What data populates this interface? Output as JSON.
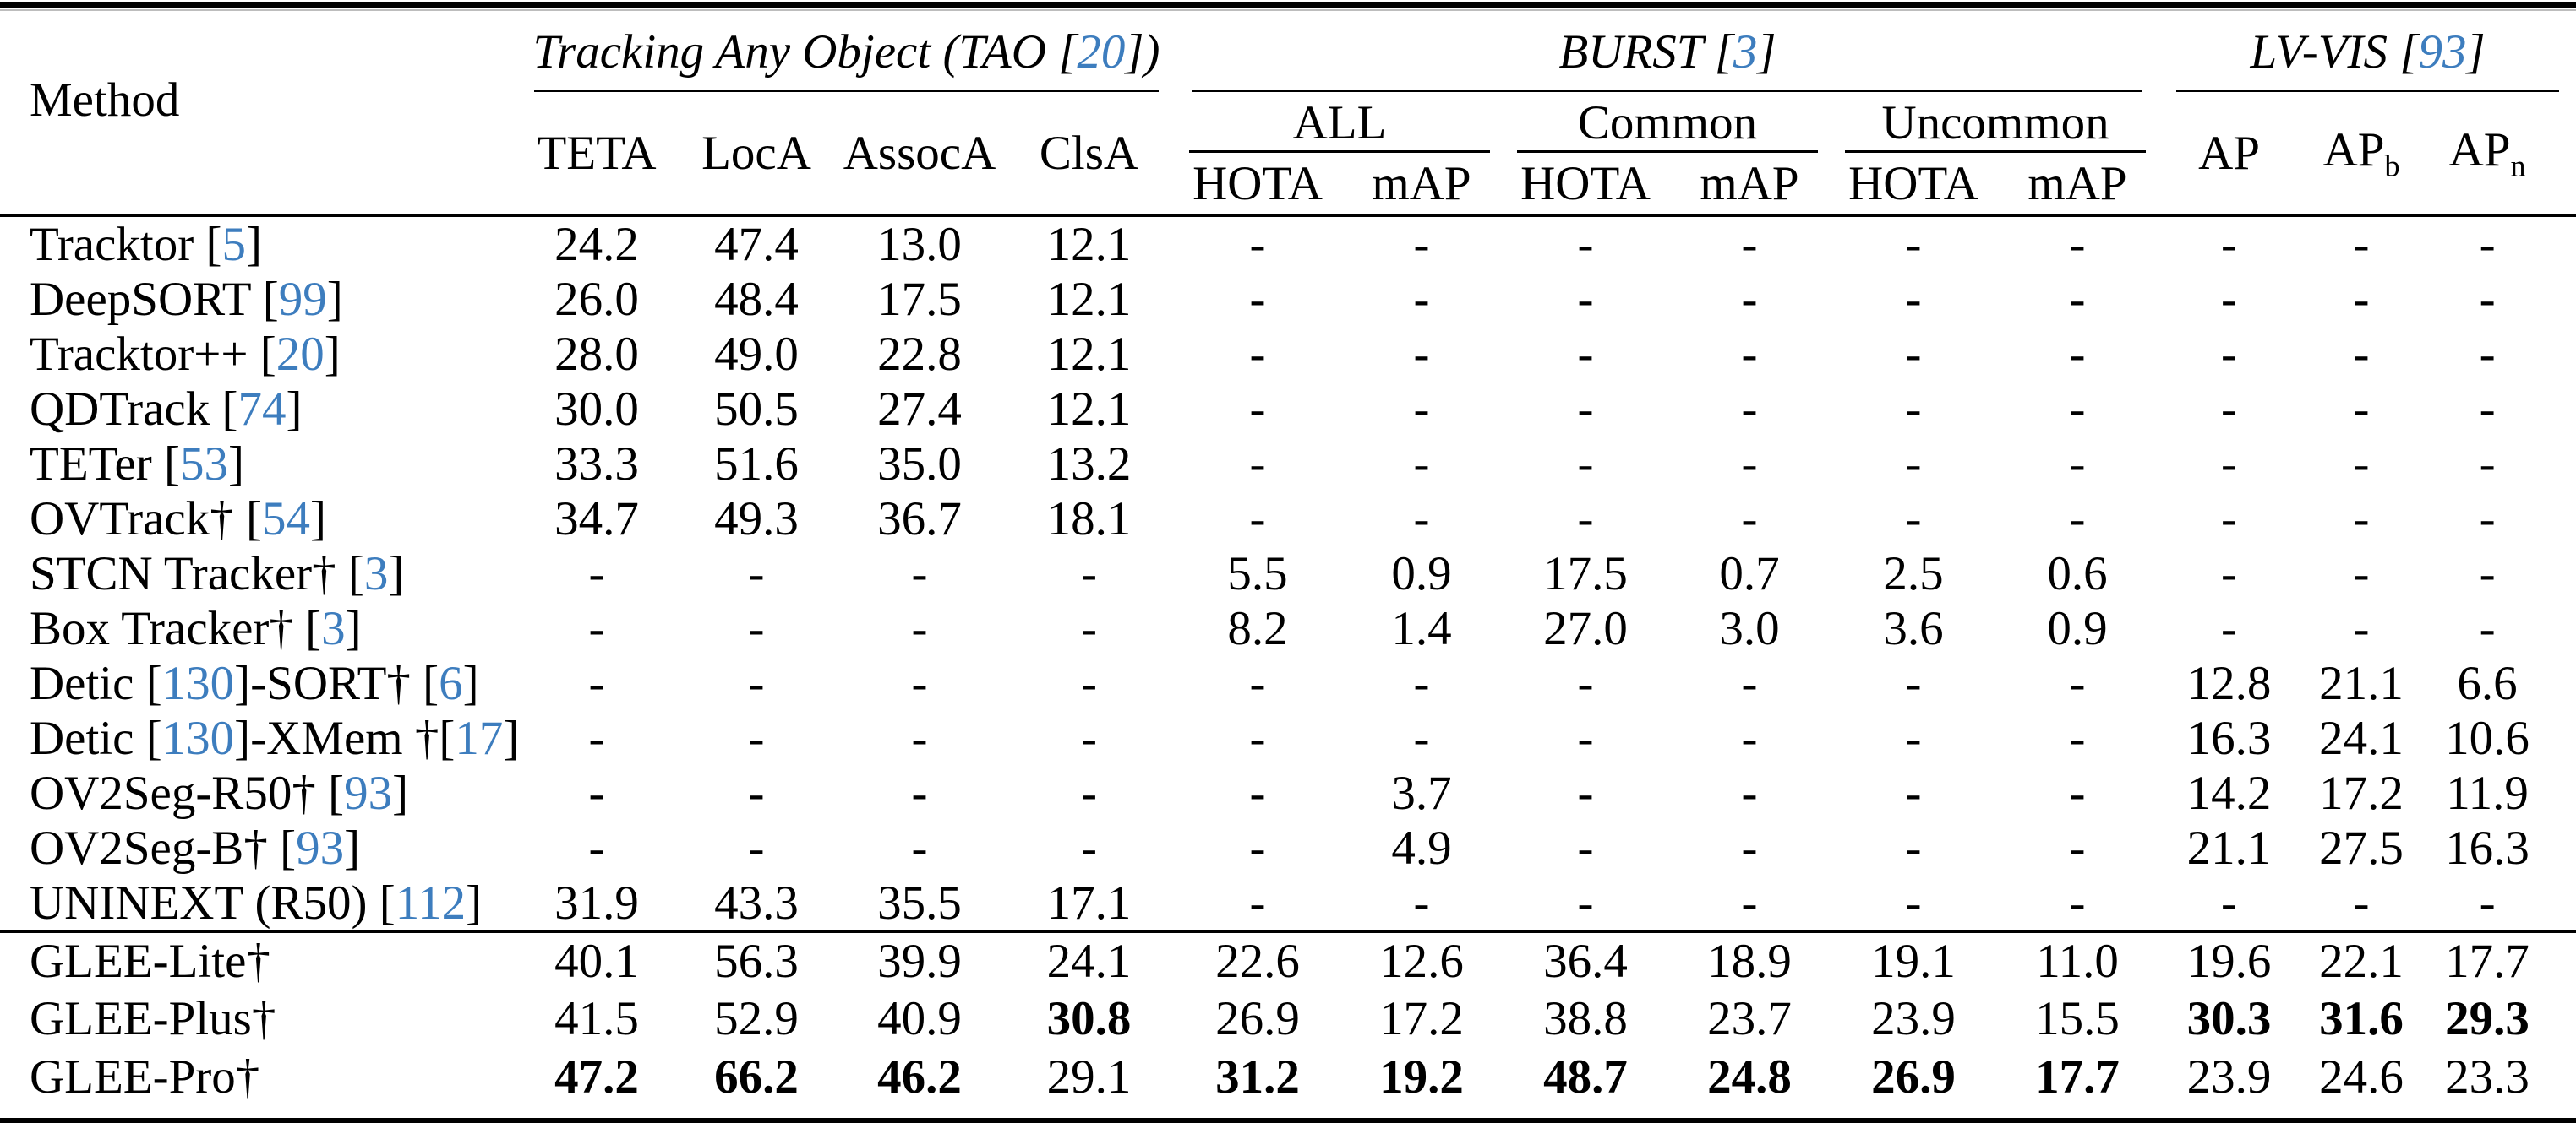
{
  "table": {
    "colors": {
      "citation_blue": "#3d7dbe",
      "text": "#000000",
      "background": "#ffffff"
    },
    "header": {
      "method": "Method",
      "groups": [
        "Tracking Any Object (TAO [20])",
        "BURST [3]",
        "LV-VIS [93]"
      ],
      "tao_cols": [
        "TETA",
        "LocA",
        "AssocA",
        "ClsA"
      ],
      "burst_groups": [
        "ALL",
        "Common",
        "Uncommon"
      ],
      "burst_metrics": [
        "HOTA",
        "mAP",
        "HOTA",
        "mAP",
        "HOTA",
        "mAP"
      ],
      "lvvis_cols": [
        {
          "label": "AP",
          "sub": ""
        },
        {
          "label": "AP",
          "sub": "b"
        },
        {
          "label": "AP",
          "sub": "n"
        }
      ]
    },
    "sections": [
      {
        "rows": [
          {
            "method": "Tracktor [5]",
            "values": [
              "24.2",
              "47.4",
              "13.0",
              "12.1",
              "-",
              "-",
              "-",
              "-",
              "-",
              "-",
              "-",
              "-",
              "-"
            ],
            "bold": []
          },
          {
            "method": "DeepSORT [99]",
            "values": [
              "26.0",
              "48.4",
              "17.5",
              "12.1",
              "-",
              "-",
              "-",
              "-",
              "-",
              "-",
              "-",
              "-",
              "-"
            ],
            "bold": []
          },
          {
            "method": "Tracktor++ [20]",
            "values": [
              "28.0",
              "49.0",
              "22.8",
              "12.1",
              "-",
              "-",
              "-",
              "-",
              "-",
              "-",
              "-",
              "-",
              "-"
            ],
            "bold": []
          },
          {
            "method": "QDTrack [74]",
            "values": [
              "30.0",
              "50.5",
              "27.4",
              "12.1",
              "-",
              "-",
              "-",
              "-",
              "-",
              "-",
              "-",
              "-",
              "-"
            ],
            "bold": []
          },
          {
            "method": "TETer [53]",
            "values": [
              "33.3",
              "51.6",
              "35.0",
              "13.2",
              "-",
              "-",
              "-",
              "-",
              "-",
              "-",
              "-",
              "-",
              "-"
            ],
            "bold": []
          },
          {
            "method": "OVTrack† [54]",
            "values": [
              "34.7",
              "49.3",
              "36.7",
              "18.1",
              "-",
              "-",
              "-",
              "-",
              "-",
              "-",
              "-",
              "-",
              "-"
            ],
            "bold": []
          },
          {
            "method": "STCN Tracker† [3]",
            "values": [
              "-",
              "-",
              "-",
              "-",
              "5.5",
              "0.9",
              "17.5",
              "0.7",
              "2.5",
              "0.6",
              "-",
              "-",
              "-"
            ],
            "bold": []
          },
          {
            "method": "Box Tracker† [3]",
            "values": [
              "-",
              "-",
              "-",
              "-",
              "8.2",
              "1.4",
              "27.0",
              "3.0",
              "3.6",
              "0.9",
              "-",
              "-",
              "-"
            ],
            "bold": []
          },
          {
            "method": "Detic [130]-SORT† [6]",
            "values": [
              "-",
              "-",
              "-",
              "-",
              "-",
              "-",
              "-",
              "-",
              "-",
              "-",
              "12.8",
              "21.1",
              "6.6"
            ],
            "bold": []
          },
          {
            "method": "Detic [130]-XMem †[17]",
            "values": [
              "-",
              "-",
              "-",
              "-",
              "-",
              "-",
              "-",
              "-",
              "-",
              "-",
              "16.3",
              "24.1",
              "10.6"
            ],
            "bold": []
          },
          {
            "method": "OV2Seg-R50† [93]",
            "values": [
              "-",
              "-",
              "-",
              "-",
              "-",
              "3.7",
              "-",
              "-",
              "-",
              "-",
              "14.2",
              "17.2",
              "11.9"
            ],
            "bold": []
          },
          {
            "method": "OV2Seg-B† [93]",
            "values": [
              "-",
              "-",
              "-",
              "-",
              "-",
              "4.9",
              "-",
              "-",
              "-",
              "-",
              "21.1",
              "27.5",
              "16.3"
            ],
            "bold": []
          },
          {
            "method": "UNINEXT (R50) [112]",
            "values": [
              "31.9",
              "43.3",
              "35.5",
              "17.1",
              "-",
              "-",
              "-",
              "-",
              "-",
              "-",
              "-",
              "-",
              "-"
            ],
            "bold": []
          }
        ]
      },
      {
        "rows": [
          {
            "method": "GLEE-Lite†",
            "values": [
              "40.1",
              "56.3",
              "39.9",
              "24.1",
              "22.6",
              "12.6",
              "36.4",
              "18.9",
              "19.1",
              "11.0",
              "19.6",
              "22.1",
              "17.7"
            ],
            "bold": []
          },
          {
            "method": "GLEE-Plus†",
            "values": [
              "41.5",
              "52.9",
              "40.9",
              "30.8",
              "26.9",
              "17.2",
              "38.8",
              "23.7",
              "23.9",
              "15.5",
              "30.3",
              "31.6",
              "29.3"
            ],
            "bold": [
              3,
              10,
              11,
              12
            ]
          },
          {
            "method": "GLEE-Pro†",
            "values": [
              "47.2",
              "66.2",
              "46.2",
              "29.1",
              "31.2",
              "19.2",
              "48.7",
              "24.8",
              "26.9",
              "17.7",
              "23.9",
              "24.6",
              "23.3"
            ],
            "bold": [
              0,
              1,
              2,
              4,
              5,
              6,
              7,
              8,
              9
            ]
          }
        ]
      }
    ]
  }
}
